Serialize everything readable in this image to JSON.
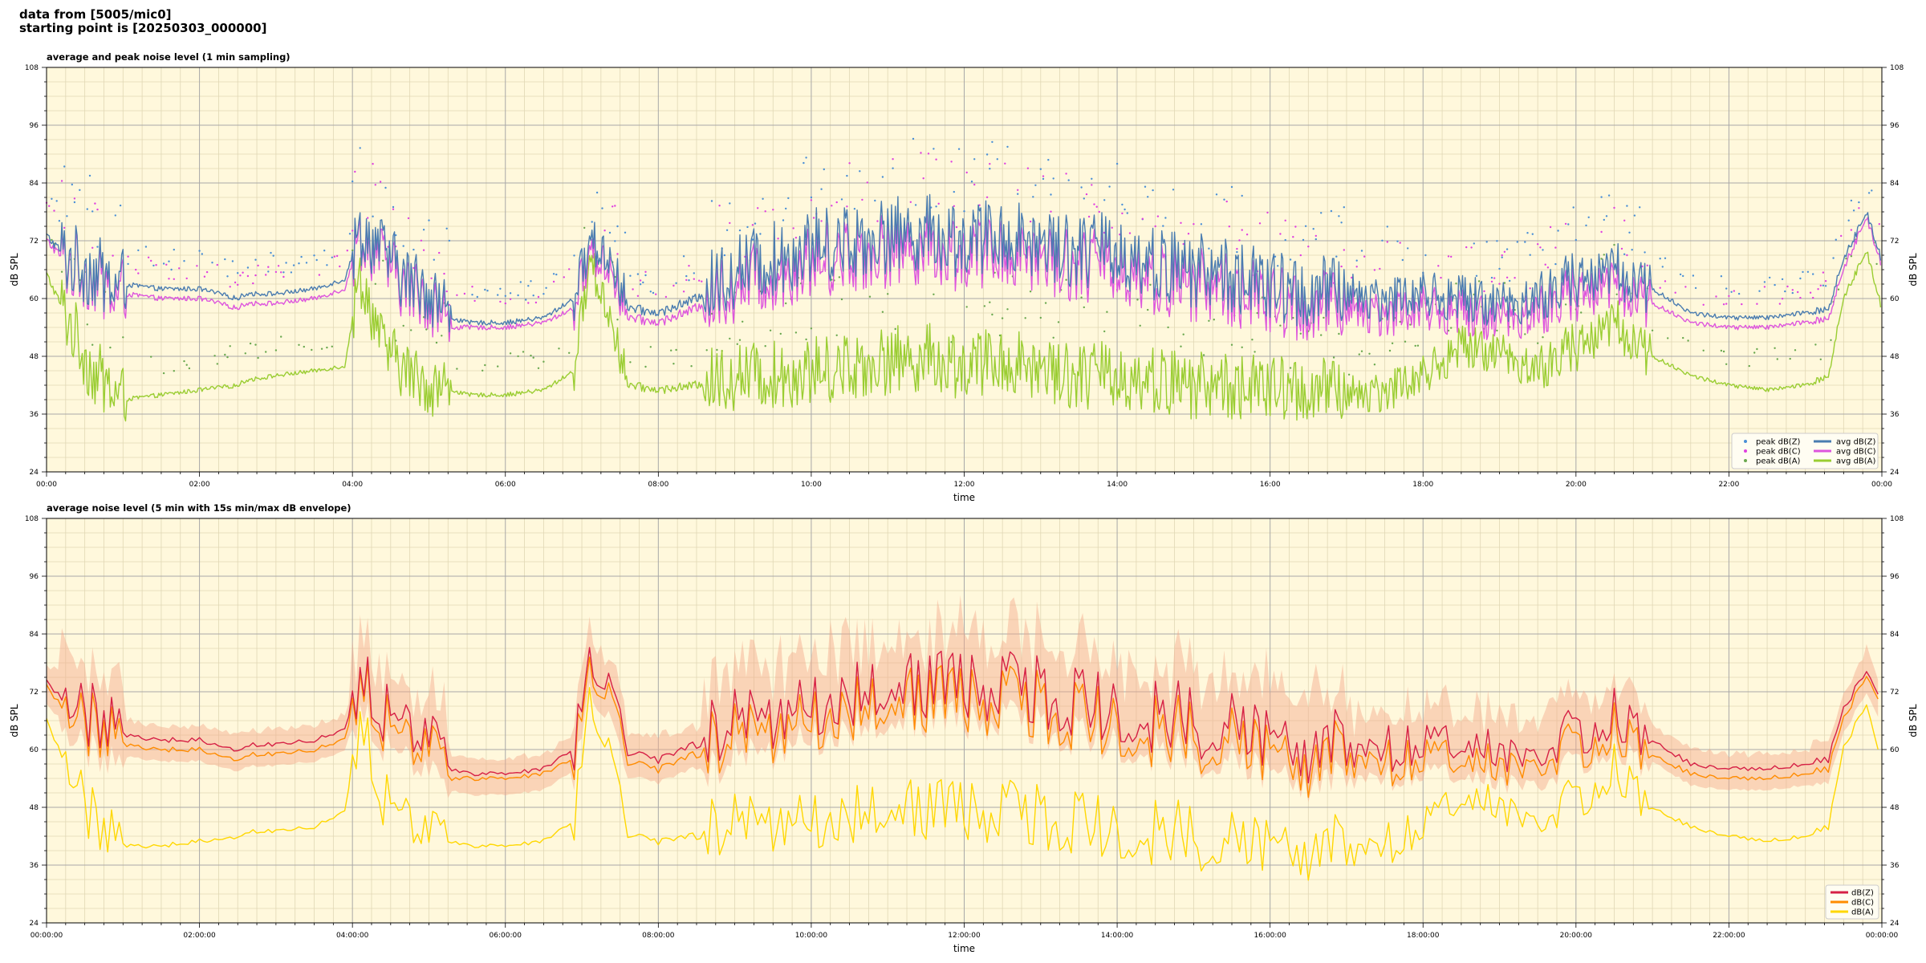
{
  "header": {
    "line1": "data from [5005/mic0]",
    "line2": "starting point is [20250303_000000]"
  },
  "colors": {
    "background": "#fff8dc",
    "grid_major": "#a8a8a8",
    "grid_minor": "#e0d7b5",
    "dBZ_peak": "#4a8fd6",
    "dBC_peak": "#e040e0",
    "dBA_peak": "#6aa84f",
    "avg_dBZ": "#4a7cb0",
    "avg_dBC": "#dd55dd",
    "avg_dBA": "#9acd32",
    "dBZ": "#d62045",
    "dBC": "#ff8c00",
    "dBA": "#ffd700",
    "envelope": "#f4a98a"
  },
  "chart_data": [
    {
      "type": "line",
      "title": "average and peak noise level (1 min sampling)",
      "xlabel": "time",
      "ylabel": "dB SPL",
      "ylabel_right": "dB SPL",
      "ylim": [
        24,
        108
      ],
      "yticks": [
        "24",
        "36",
        "48",
        "60",
        "72",
        "84",
        "96",
        "108"
      ],
      "xticks": [
        "00:00",
        "02:00",
        "04:00",
        "06:00",
        "08:00",
        "10:00",
        "12:00",
        "14:00",
        "16:00",
        "18:00",
        "20:00",
        "22:00",
        "00:00"
      ],
      "grid": true,
      "legend_position": "lower-right",
      "legend": [
        "peak dB(Z)",
        "peak dB(C)",
        "peak dB(A)",
        "avg dB(Z)",
        "avg dB(C)",
        "avg dB(A)"
      ],
      "x_hours": [
        0,
        0.3,
        0.6,
        0.9,
        1.0,
        1.5,
        2.0,
        2.5,
        2.6,
        3.0,
        3.5,
        3.9,
        4.1,
        4.4,
        4.7,
        5.0,
        5.3,
        5.5,
        6.0,
        6.5,
        6.9,
        7.1,
        7.4,
        7.6,
        8.0,
        8.5,
        9.0,
        9.5,
        10.0,
        10.5,
        11.0,
        11.5,
        12.0,
        12.5,
        13.0,
        13.5,
        14.0,
        14.5,
        15.0,
        15.5,
        16.0,
        16.5,
        17.0,
        17.5,
        18.0,
        18.5,
        19.0,
        19.5,
        20.0,
        20.5,
        21.0,
        21.5,
        22.0,
        22.5,
        23.0,
        23.3,
        23.5,
        23.8,
        24.0
      ],
      "series": [
        {
          "name": "avg dB(Z)",
          "values": [
            73,
            68,
            66,
            62,
            63,
            62,
            62,
            60,
            61,
            61,
            62,
            64,
            74,
            70,
            64,
            62,
            56,
            55,
            55,
            56,
            60,
            72,
            68,
            58,
            57,
            60,
            66,
            68,
            71,
            72,
            73,
            74,
            72,
            73,
            72,
            70,
            70,
            67,
            66,
            65,
            62,
            61,
            61,
            60,
            61,
            60,
            59,
            60,
            64,
            66,
            62,
            57,
            56,
            56,
            57,
            58,
            68,
            78,
            68
          ]
        },
        {
          "name": "avg dB(C)",
          "values": [
            72,
            67,
            65,
            60,
            61,
            60,
            60,
            58,
            59,
            59,
            60,
            62,
            73,
            68,
            62,
            60,
            54,
            54,
            54,
            55,
            58,
            70,
            66,
            56,
            55,
            58,
            63,
            65,
            68,
            69,
            70,
            71,
            69,
            70,
            69,
            67,
            67,
            64,
            63,
            62,
            59,
            58,
            58,
            57,
            58,
            57,
            56,
            57,
            61,
            63,
            59,
            55,
            54,
            54,
            55,
            56,
            66,
            77,
            67
          ]
        },
        {
          "name": "avg dB(A)",
          "values": [
            65,
            55,
            45,
            40,
            39,
            40,
            41,
            42,
            43,
            44,
            45,
            46,
            65,
            50,
            45,
            42,
            41,
            40,
            40,
            41,
            45,
            68,
            55,
            42,
            41,
            42,
            44,
            44,
            45,
            46,
            47,
            48,
            46,
            47,
            46,
            44,
            44,
            43,
            42,
            42,
            41,
            41,
            40,
            41,
            44,
            50,
            49,
            45,
            50,
            55,
            48,
            44,
            42,
            41,
            42,
            44,
            60,
            70,
            58
          ]
        }
      ]
    },
    {
      "type": "line",
      "title": "average noise level (5 min with 15s min/max dB envelope)",
      "xlabel": "time",
      "ylabel": "dB SPL",
      "ylabel_right": "dB SPL",
      "ylim": [
        24,
        108
      ],
      "yticks": [
        "24",
        "36",
        "48",
        "60",
        "72",
        "84",
        "96",
        "108"
      ],
      "xticks": [
        "00:00:00",
        "02:00:00",
        "04:00:00",
        "06:00:00",
        "08:00:00",
        "10:00:00",
        "12:00:00",
        "14:00:00",
        "16:00:00",
        "18:00:00",
        "20:00:00",
        "22:00:00",
        "00:00:00"
      ],
      "grid": true,
      "legend_position": "lower-right",
      "legend": [
        "dB(Z)",
        "dB(C)",
        "dB(A)"
      ],
      "x_hours": [
        0,
        0.3,
        0.6,
        0.9,
        1.0,
        1.5,
        2.0,
        2.5,
        2.6,
        3.0,
        3.5,
        3.9,
        4.1,
        4.4,
        4.7,
        5.0,
        5.3,
        5.5,
        6.0,
        6.5,
        6.9,
        7.1,
        7.4,
        7.6,
        8.0,
        8.5,
        9.0,
        9.5,
        10.0,
        10.5,
        11.0,
        11.5,
        12.0,
        12.5,
        13.0,
        13.5,
        14.0,
        14.5,
        15.0,
        15.5,
        16.0,
        16.5,
        17.0,
        17.5,
        18.0,
        18.5,
        19.0,
        19.5,
        20.0,
        20.5,
        21.0,
        21.5,
        22.0,
        22.5,
        23.0,
        23.3,
        23.5,
        23.8,
        24.0
      ],
      "series": [
        {
          "name": "dB(Z)",
          "values": [
            74,
            70,
            67,
            63,
            63,
            62,
            62,
            60,
            61,
            61,
            62,
            64,
            75,
            68,
            65,
            62,
            56,
            55,
            55,
            56,
            60,
            78,
            70,
            59,
            58,
            61,
            65,
            67,
            70,
            72,
            73,
            74,
            73,
            74,
            72,
            70,
            69,
            67,
            66,
            65,
            62,
            61,
            60,
            60,
            61,
            60,
            59,
            59,
            64,
            67,
            62,
            57,
            56,
            56,
            57,
            58,
            68,
            77,
            70
          ]
        },
        {
          "name": "dB(C)",
          "values": [
            73,
            68,
            65,
            61,
            61,
            60,
            60,
            58,
            59,
            59,
            60,
            62,
            74,
            66,
            62,
            60,
            54,
            54,
            54,
            55,
            58,
            76,
            68,
            57,
            56,
            59,
            62,
            64,
            67,
            69,
            70,
            71,
            70,
            71,
            69,
            67,
            66,
            64,
            63,
            62,
            59,
            58,
            58,
            57,
            58,
            57,
            56,
            57,
            61,
            64,
            59,
            55,
            54,
            54,
            55,
            56,
            66,
            76,
            69
          ]
        },
        {
          "name": "dB(A)",
          "values": [
            66,
            56,
            46,
            40,
            40,
            40,
            41,
            42,
            43,
            43,
            44,
            47,
            66,
            50,
            46,
            42,
            41,
            40,
            40,
            41,
            45,
            70,
            56,
            42,
            41,
            42,
            44,
            45,
            46,
            47,
            48,
            48,
            47,
            48,
            46,
            45,
            44,
            43,
            42,
            41,
            40,
            40,
            39,
            40,
            44,
            49,
            48,
            45,
            50,
            56,
            48,
            44,
            42,
            41,
            42,
            44,
            60,
            70,
            57
          ]
        }
      ]
    }
  ]
}
